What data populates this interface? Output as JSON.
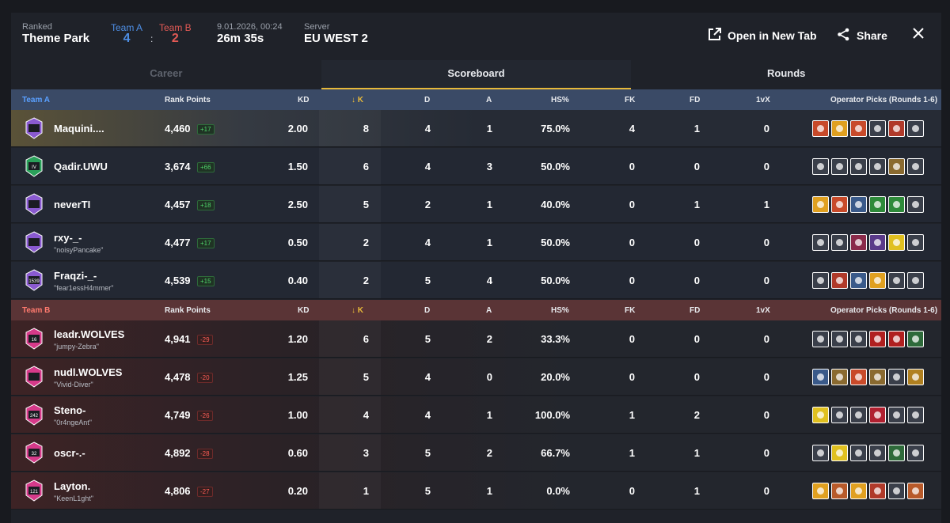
{
  "header": {
    "mode": "Ranked",
    "map": "Theme Park",
    "team_a_label": "Team A",
    "team_a_score": "4",
    "separator": ":",
    "team_b_label": "Team B",
    "team_b_score": "2",
    "date": "9.01.2026, 00:24",
    "duration": "26m 35s",
    "server_label": "Server",
    "server": "EU WEST 2",
    "open_tab_label": "Open in New Tab",
    "share_label": "Share"
  },
  "tabs": [
    {
      "label": "Career"
    },
    {
      "label": "Scoreboard"
    },
    {
      "label": "Rounds"
    }
  ],
  "columns": {
    "rank_points": "Rank Points",
    "kd": "KD",
    "k": "K",
    "d": "D",
    "a": "A",
    "hs": "HS%",
    "fk": "FK",
    "fd": "FD",
    "vx": "1vX",
    "ops": "Operator Picks (Rounds 1-6)"
  },
  "team_a": {
    "name": "Team A",
    "players": [
      {
        "name": "Maquini....",
        "alias": "",
        "rank": "",
        "points": "4,460",
        "delta": "+17",
        "kd": "2.00",
        "k": "8",
        "d": "4",
        "a": "1",
        "hs": "75.0%",
        "fk": "4",
        "fd": "1",
        "vx": "0"
      },
      {
        "name": "Qadir.UWU",
        "alias": "",
        "rank": "IV",
        "points": "3,674",
        "delta": "+66",
        "kd": "1.50",
        "k": "6",
        "d": "4",
        "a": "3",
        "hs": "50.0%",
        "fk": "0",
        "fd": "0",
        "vx": "0"
      },
      {
        "name": "neverTI",
        "alias": "",
        "rank": "",
        "points": "4,457",
        "delta": "+18",
        "kd": "2.50",
        "k": "5",
        "d": "2",
        "a": "1",
        "hs": "40.0%",
        "fk": "0",
        "fd": "1",
        "vx": "1"
      },
      {
        "name": "rxy-_-",
        "alias": "\"noisyPancake\"",
        "rank": "",
        "points": "4,477",
        "delta": "+17",
        "kd": "0.50",
        "k": "2",
        "d": "4",
        "a": "1",
        "hs": "50.0%",
        "fk": "0",
        "fd": "0",
        "vx": "0"
      },
      {
        "name": "Fraqzi-_-",
        "alias": "\"fear1essH4mmer\"",
        "rank": "1539",
        "points": "4,539",
        "delta": "+15",
        "kd": "0.40",
        "k": "2",
        "d": "5",
        "a": "4",
        "hs": "50.0%",
        "fk": "0",
        "fd": "0",
        "vx": "0"
      }
    ]
  },
  "team_b": {
    "name": "Team B",
    "players": [
      {
        "name": "leadr.WOLVES",
        "alias": "\"jumpy-Zebra\"",
        "rank": "16",
        "points": "4,941",
        "delta": "-29",
        "kd": "1.20",
        "k": "6",
        "d": "5",
        "a": "2",
        "hs": "33.3%",
        "fk": "0",
        "fd": "0",
        "vx": "0"
      },
      {
        "name": "nudl.WOLVES",
        "alias": "\"Vivid-Diver\"",
        "rank": "",
        "points": "4,478",
        "delta": "-20",
        "kd": "1.25",
        "k": "5",
        "d": "4",
        "a": "0",
        "hs": "20.0%",
        "fk": "0",
        "fd": "0",
        "vx": "0"
      },
      {
        "name": "Steno-",
        "alias": "\"0r4ngeAnt\"",
        "rank": "242",
        "points": "4,749",
        "delta": "-26",
        "kd": "1.00",
        "k": "4",
        "d": "4",
        "a": "1",
        "hs": "100.0%",
        "fk": "1",
        "fd": "2",
        "vx": "0"
      },
      {
        "name": "oscr-.-",
        "alias": "",
        "rank": "32",
        "points": "4,892",
        "delta": "-28",
        "kd": "0.60",
        "k": "3",
        "d": "5",
        "a": "2",
        "hs": "66.7%",
        "fk": "1",
        "fd": "1",
        "vx": "0"
      },
      {
        "name": "Layton.",
        "alias": "\"KeenL1ght\"",
        "rank": "121",
        "points": "4,806",
        "delta": "-27",
        "kd": "0.20",
        "k": "1",
        "d": "5",
        "a": "1",
        "hs": "0.0%",
        "fk": "0",
        "fd": "1",
        "vx": "0"
      }
    ]
  },
  "operator_colors": {
    "a0": [
      "#c84a2a",
      "#e0a020",
      "#c84a2a",
      "#3a3f4a",
      "#b03a2a",
      "#3a3f4a"
    ],
    "a1": [
      "#3a3f4a",
      "#3a3f4a",
      "#3a3f4a",
      "#3a3f4a",
      "#8a6a30",
      "#3a3f4a"
    ],
    "a2": [
      "#e0a020",
      "#c84a2a",
      "#3a5a8a",
      "#2e8a3a",
      "#2e8a3a",
      "#3a3f4a"
    ],
    "a3": [
      "#3a3f4a",
      "#3a3f4a",
      "#8a2a4a",
      "#5a3a8a",
      "#e0c020",
      "#3a3f4a"
    ],
    "a4": [
      "#3a3f4a",
      "#b03a2a",
      "#3a5a8a",
      "#e0a020",
      "#3a3f4a",
      "#3a3f4a"
    ],
    "b0": [
      "#3a3f4a",
      "#3a3f4a",
      "#3a3f4a",
      "#b02020",
      "#b02020",
      "#2e6a3a"
    ],
    "b1": [
      "#3a5a8a",
      "#8a6a30",
      "#c84a2a",
      "#8a6a30",
      "#3a3f4a",
      "#b08020"
    ],
    "b2": [
      "#e0c020",
      "#3a3f4a",
      "#3a3f4a",
      "#b02030",
      "#3a3f4a",
      "#3a3f4a"
    ],
    "b3": [
      "#3a3f4a",
      "#e0c020",
      "#3a3f4a",
      "#3a3f4a",
      "#2e6a3a",
      "#3a3f4a"
    ],
    "b4": [
      "#e0a020",
      "#b85a2a",
      "#e0a020",
      "#b03a2a",
      "#3a3f4a",
      "#b85a2a"
    ]
  }
}
